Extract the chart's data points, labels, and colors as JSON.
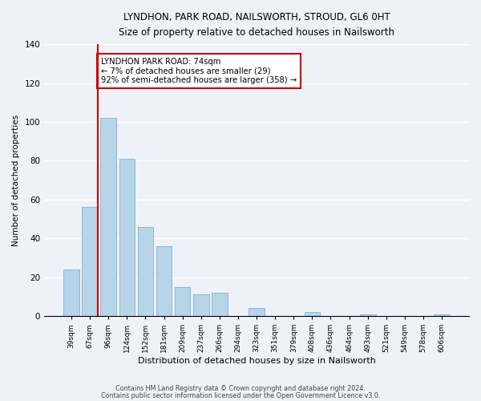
{
  "title1": "LYNDHON, PARK ROAD, NAILSWORTH, STROUD, GL6 0HT",
  "title2": "Size of property relative to detached houses in Nailsworth",
  "xlabel": "Distribution of detached houses by size in Nailsworth",
  "ylabel": "Number of detached properties",
  "categories": [
    "39sqm",
    "67sqm",
    "96sqm",
    "124sqm",
    "152sqm",
    "181sqm",
    "209sqm",
    "237sqm",
    "266sqm",
    "294sqm",
    "323sqm",
    "351sqm",
    "379sqm",
    "408sqm",
    "436sqm",
    "464sqm",
    "493sqm",
    "521sqm",
    "549sqm",
    "578sqm",
    "606sqm"
  ],
  "values": [
    24,
    56,
    102,
    81,
    46,
    36,
    15,
    11,
    12,
    0,
    4,
    0,
    0,
    2,
    0,
    0,
    1,
    0,
    0,
    0,
    1
  ],
  "bar_color": "#b8d4e8",
  "bar_edge_color": "#8ab8d8",
  "marker_color": "#cc0000",
  "annotation_text": "LYNDHON PARK ROAD: 74sqm\n← 7% of detached houses are smaller (29)\n92% of semi-detached houses are larger (358) →",
  "annotation_box_color": "#ffffff",
  "annotation_box_edge": "#cc0000",
  "ylim": [
    0,
    140
  ],
  "yticks": [
    0,
    20,
    40,
    60,
    80,
    100,
    120,
    140
  ],
  "footer1": "Contains HM Land Registry data © Crown copyright and database right 2024.",
  "footer2": "Contains public sector information licensed under the Open Government Licence v3.0.",
  "background_color": "#eef2f8"
}
